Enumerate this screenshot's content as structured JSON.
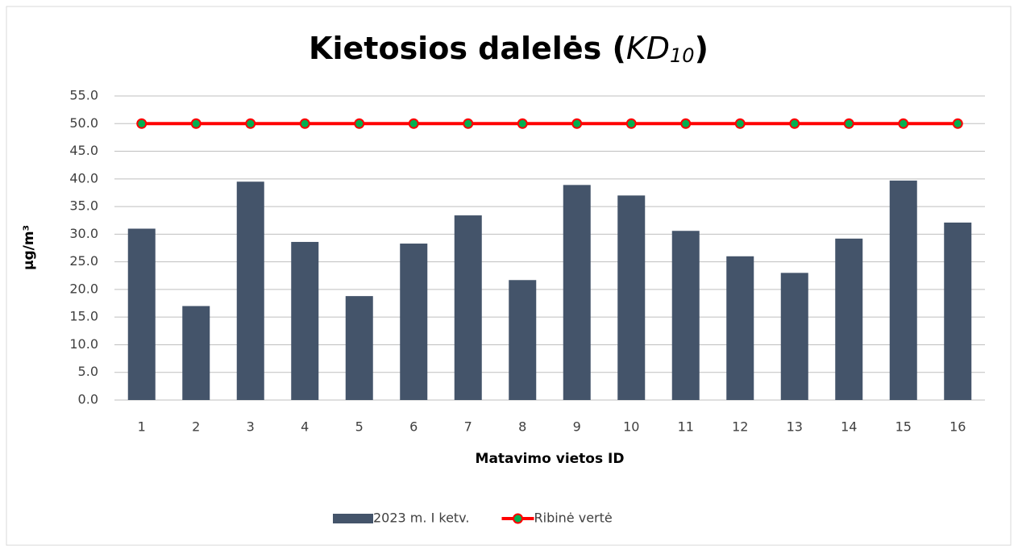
{
  "chart_data": {
    "type": "bar",
    "title_parts": [
      "Kietosios dalelės (",
      "KD",
      "10",
      ")"
    ],
    "xlabel": "Matavimo vietos ID",
    "ylabel": "µg/m³",
    "categories": [
      "1",
      "2",
      "3",
      "4",
      "5",
      "6",
      "7",
      "8",
      "9",
      "10",
      "11",
      "12",
      "13",
      "14",
      "15",
      "16"
    ],
    "series": [
      {
        "name": "2023 m. I ketv.",
        "type": "bar",
        "color": "#44546a",
        "values": [
          31.0,
          17.0,
          39.5,
          28.6,
          18.8,
          28.3,
          33.4,
          21.7,
          38.9,
          37.0,
          30.6,
          26.0,
          23.0,
          29.2,
          39.7,
          32.1
        ]
      },
      {
        "name": "Ribinė vertė",
        "type": "line",
        "color": "#ff0000",
        "marker_color": "#00b050",
        "values": [
          50,
          50,
          50,
          50,
          50,
          50,
          50,
          50,
          50,
          50,
          50,
          50,
          50,
          50,
          50,
          50
        ]
      }
    ],
    "ylim": [
      0,
      55
    ],
    "yticks": [
      {
        "value": 0,
        "label": "0.0"
      },
      {
        "value": 5,
        "label": "5.0"
      },
      {
        "value": 10,
        "label": "10.0"
      },
      {
        "value": 15,
        "label": "15.0"
      },
      {
        "value": 20,
        "label": "20.0"
      },
      {
        "value": 25,
        "label": "25.0"
      },
      {
        "value": 30,
        "label": "30.0"
      },
      {
        "value": 35,
        "label": "35.0"
      },
      {
        "value": 40,
        "label": "40.0"
      },
      {
        "value": 45,
        "label": "45.0"
      },
      {
        "value": 50,
        "label": "50.0"
      },
      {
        "value": 55,
        "label": "55.0"
      }
    ],
    "grid": true,
    "legend": "bottom"
  }
}
